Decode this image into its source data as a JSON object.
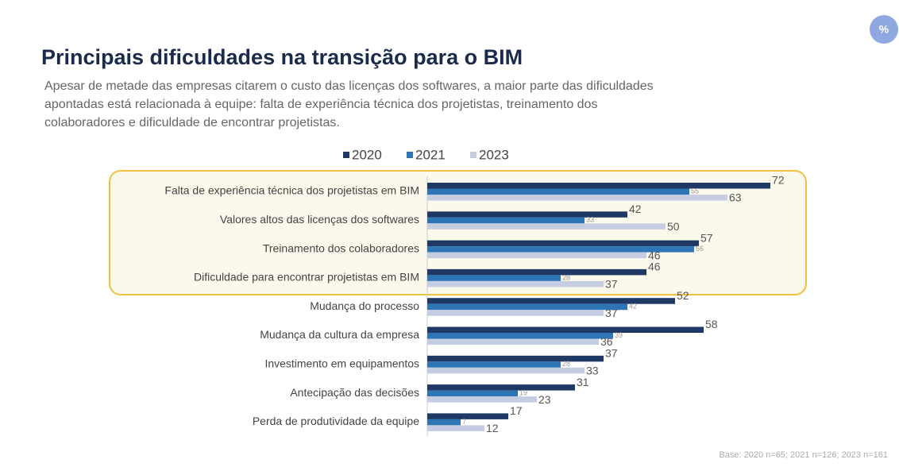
{
  "chart_data": {
    "type": "barh",
    "title": "Principais dificuldades na transição para o BIM",
    "subtitle": [
      "Apesar de metade das empresas citarem o custo das licenças dos softwares, a maior parte das dificuldades",
      "apontadas está relacionada à equipe: falta de experiência técnica dos projetistas, treinamento dos",
      "colaboradores e dificuldade de encontrar projetistas."
    ],
    "badge": "%",
    "categories": [
      "Falta de experiência técnica dos projetistas em BIM",
      "Valores altos das licenças dos softwares",
      "Treinamento dos colaboradores",
      "Dificuldade para encontrar projetistas em BIM",
      "Mudança do processo",
      "Mudança da cultura da empresa",
      "Investimento em equipamentos",
      "Antecipação das decisões",
      "Perda de produtividade da equipe"
    ],
    "series": [
      {
        "name": "2020",
        "color": "#1f3864",
        "values": [
          72,
          42,
          57,
          46,
          52,
          58,
          37,
          31,
          17
        ]
      },
      {
        "name": "2021",
        "color": "#2e75b6",
        "values": [
          55,
          33,
          56,
          28,
          42,
          39,
          28,
          19,
          7
        ]
      },
      {
        "name": "2023",
        "color": "#c5cde3",
        "values": [
          63,
          50,
          46,
          37,
          37,
          36,
          33,
          23,
          12
        ]
      }
    ],
    "note": "Base: 2020 n=65; 2021 n=126; 2023 n=161"
  }
}
